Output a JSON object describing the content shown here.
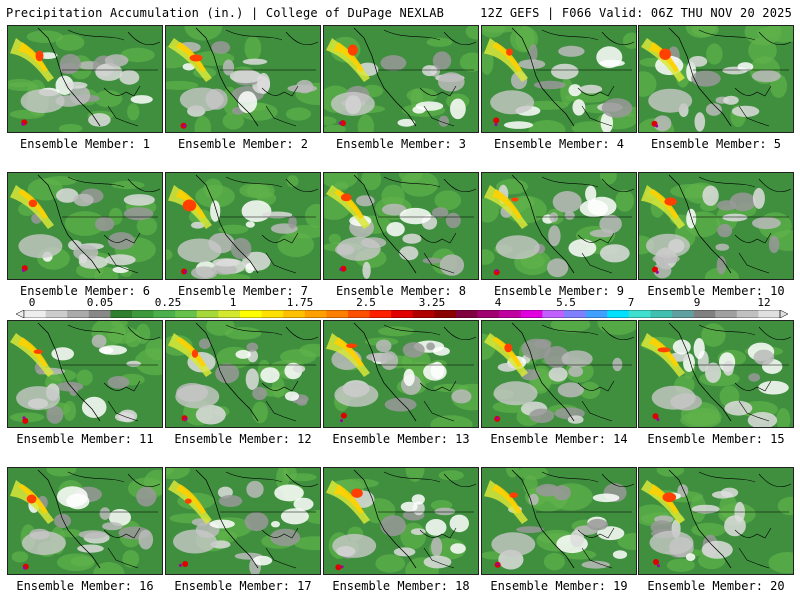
{
  "header": {
    "title": "Precipitation Accumulation (in.) | College of DuPage NEXLAB",
    "run_info": "12Z GEFS | F066 Valid: 06Z THU NOV 20 2025"
  },
  "panels": [
    {
      "label": "Ensemble Member: 1"
    },
    {
      "label": "Ensemble Member: 2"
    },
    {
      "label": "Ensemble Member: 3"
    },
    {
      "label": "Ensemble Member: 4"
    },
    {
      "label": "Ensemble Member: 5"
    },
    {
      "label": "Ensemble Member: 6"
    },
    {
      "label": "Ensemble Member: 7"
    },
    {
      "label": "Ensemble Member: 8"
    },
    {
      "label": "Ensemble Member: 9"
    },
    {
      "label": "Ensemble Member: 10"
    },
    {
      "label": "Ensemble Member: 11"
    },
    {
      "label": "Ensemble Member: 12"
    },
    {
      "label": "Ensemble Member: 13"
    },
    {
      "label": "Ensemble Member: 14"
    },
    {
      "label": "Ensemble Member: 15"
    },
    {
      "label": "Ensemble Member: 16"
    },
    {
      "label": "Ensemble Member: 17"
    },
    {
      "label": "Ensemble Member: 18"
    },
    {
      "label": "Ensemble Member: 19"
    },
    {
      "label": "Ensemble Member: 20"
    }
  ],
  "legend": {
    "ticks": [
      "0",
      "0.05",
      "0.25",
      "1",
      "1.75",
      "2.5",
      "3.25",
      "4",
      "5.5",
      "7",
      "9",
      "12"
    ],
    "colors": [
      "#eeeeee",
      "#cccccc",
      "#aaaaaa",
      "#888888",
      "#2f7f2f",
      "#3c9a3c",
      "#4cb04c",
      "#66c24a",
      "#a6d83a",
      "#d4e830",
      "#ffff00",
      "#ffe000",
      "#ffc000",
      "#ffa000",
      "#ff7f00",
      "#ff5000",
      "#ff2000",
      "#e00000",
      "#b00000",
      "#8b0000",
      "#800040",
      "#a00070",
      "#c000a0",
      "#e000e0",
      "#c060ff",
      "#8080ff",
      "#40a0ff",
      "#00e0ff",
      "#40e0d0",
      "#40c0b0",
      "#60a0a0",
      "#808080",
      "#a0a0a0",
      "#c0c0c0",
      "#e0e0e0"
    ]
  }
}
